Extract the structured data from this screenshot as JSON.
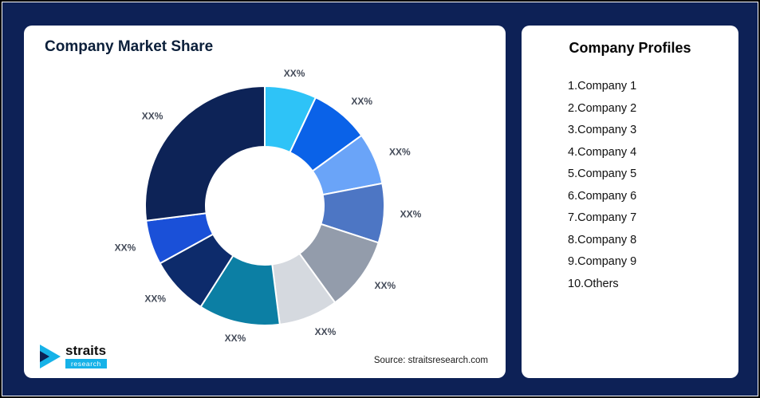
{
  "frame": {
    "background_color": "#0D2156"
  },
  "left_card": {
    "title": "Company Market Share",
    "source": "Source: straitsresearch.com",
    "logo": {
      "name": "straits",
      "sub": "research",
      "accent_color": "#16B2E8"
    }
  },
  "right_card": {
    "title": "Company Profiles",
    "items": [
      "1.Company 1",
      "2.Company 2",
      "3.Company 3",
      "4.Company 4",
      "5.Company 5",
      "6.Company 6",
      "7.Company 7",
      "8.Company 8",
      "9.Company 9",
      "10.Others"
    ]
  },
  "chart_data": {
    "type": "pie",
    "subtype": "donut",
    "title": "Company Market Share",
    "labels": [
      "Company 1",
      "Company 2",
      "Company 3",
      "Company 4",
      "Company 5",
      "Company 6",
      "Company 7",
      "Company 8",
      "Company 9",
      "Others"
    ],
    "display_labels": [
      "XX%",
      "XX%",
      "XX%",
      "XX%",
      "XX%",
      "XX%",
      "XX%",
      "XX%",
      "XX%",
      "XX%"
    ],
    "values_estimated_pct": [
      7,
      8,
      7,
      8,
      10,
      8,
      11,
      8,
      6,
      27
    ],
    "colors": [
      "#2EC3F7",
      "#0A62E8",
      "#6AA4F8",
      "#4D76C4",
      "#939CAB",
      "#D5D9DF",
      "#0C7FA4",
      "#0D2B6B",
      "#1A50D8",
      "#0D2357"
    ],
    "start_angle_deg": -90,
    "direction": "clockwise",
    "inner_radius_ratio": 0.49,
    "legend": "none",
    "source": "Source: straitsresearch.com"
  }
}
